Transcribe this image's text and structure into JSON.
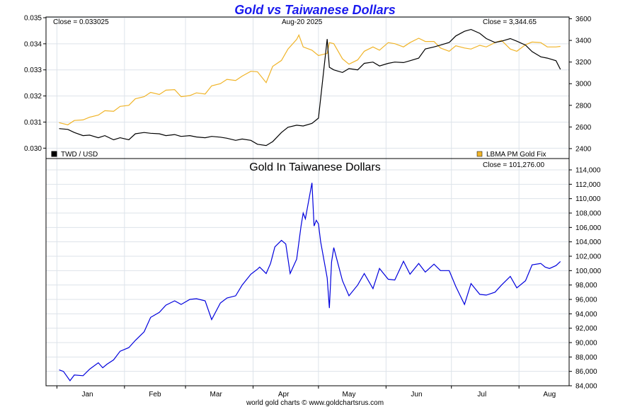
{
  "colors": {
    "twd": "#000000",
    "gold": "#f0b429",
    "gold_in_twd": "#0000dd",
    "grid": "#dde3ea",
    "title": "#1a1aee"
  },
  "chart_data": [
    {
      "type": "line",
      "title": "Gold vs Taiwanese Dollars",
      "close_left": "Close = 0.033025",
      "date_label": "Aug-20  2025",
      "close_right": "Close = 3,344.65",
      "legend_left": "TWD / USD",
      "legend_right": "LBMA PM Gold Fix",
      "legend_placement": "bottom",
      "y_left": {
        "ticks": [
          "0.030",
          "0.031",
          "0.032",
          "0.033",
          "0.034",
          "0.035"
        ],
        "ylim": [
          0.0299,
          0.035
        ]
      },
      "y_right": {
        "ticks": [
          "2400",
          "2600",
          "2800",
          "3000",
          "3200",
          "3400",
          "3600"
        ],
        "ylim": [
          2380,
          3610
        ]
      },
      "x_months": [
        "Jan",
        "Feb",
        "Mar",
        "Apr",
        "May",
        "Jun",
        "Jul",
        "Aug"
      ],
      "grid": true,
      "series": [
        {
          "name": "TWD / USD",
          "axis": "left",
          "points": [
            [
              "2025-01-02",
              0.03075
            ],
            [
              "2025-01-06",
              0.03072
            ],
            [
              "2025-01-09",
              0.0306
            ],
            [
              "2025-01-13",
              0.03048
            ],
            [
              "2025-01-16",
              0.0305
            ],
            [
              "2025-01-20",
              0.0304
            ],
            [
              "2025-01-23",
              0.03048
            ],
            [
              "2025-01-27",
              0.03032
            ],
            [
              "2025-01-30",
              0.0304
            ],
            [
              "2025-02-03",
              0.03032
            ],
            [
              "2025-02-06",
              0.03055
            ],
            [
              "2025-02-10",
              0.0306
            ],
            [
              "2025-02-13",
              0.03057
            ],
            [
              "2025-02-17",
              0.03055
            ],
            [
              "2025-02-20",
              0.03048
            ],
            [
              "2025-02-24",
              0.03052
            ],
            [
              "2025-02-27",
              0.03045
            ],
            [
              "2025-03-03",
              0.03048
            ],
            [
              "2025-03-06",
              0.03043
            ],
            [
              "2025-03-10",
              0.0304
            ],
            [
              "2025-03-13",
              0.03045
            ],
            [
              "2025-03-17",
              0.03042
            ],
            [
              "2025-03-20",
              0.03038
            ],
            [
              "2025-03-24",
              0.0303
            ],
            [
              "2025-03-27",
              0.03035
            ],
            [
              "2025-03-31",
              0.0303
            ],
            [
              "2025-04-03",
              0.03015
            ],
            [
              "2025-04-07",
              0.0301
            ],
            [
              "2025-04-10",
              0.03025
            ],
            [
              "2025-04-14",
              0.0306
            ],
            [
              "2025-04-17",
              0.0308
            ],
            [
              "2025-04-21",
              0.03088
            ],
            [
              "2025-04-24",
              0.03085
            ],
            [
              "2025-04-28",
              0.03095
            ],
            [
              "2025-05-01",
              0.03115
            ],
            [
              "2025-05-05",
              0.03418
            ],
            [
              "2025-05-06",
              0.0331
            ],
            [
              "2025-05-08",
              0.033
            ],
            [
              "2025-05-12",
              0.0329
            ],
            [
              "2025-05-15",
              0.03305
            ],
            [
              "2025-05-19",
              0.033
            ],
            [
              "2025-05-22",
              0.03325
            ],
            [
              "2025-05-26",
              0.0333
            ],
            [
              "2025-05-29",
              0.03315
            ],
            [
              "2025-06-02",
              0.03325
            ],
            [
              "2025-06-05",
              0.0333
            ],
            [
              "2025-06-09",
              0.03328
            ],
            [
              "2025-06-12",
              0.03335
            ],
            [
              "2025-06-16",
              0.03345
            ],
            [
              "2025-06-19",
              0.0338
            ],
            [
              "2025-06-23",
              0.03388
            ],
            [
              "2025-06-26",
              0.03395
            ],
            [
              "2025-06-30",
              0.03405
            ],
            [
              "2025-07-03",
              0.0343
            ],
            [
              "2025-07-07",
              0.03448
            ],
            [
              "2025-07-10",
              0.03455
            ],
            [
              "2025-07-14",
              0.0344
            ],
            [
              "2025-07-17",
              0.0342
            ],
            [
              "2025-07-21",
              0.03405
            ],
            [
              "2025-07-24",
              0.0341
            ],
            [
              "2025-07-28",
              0.0342
            ],
            [
              "2025-07-31",
              0.0341
            ],
            [
              "2025-08-04",
              0.03395
            ],
            [
              "2025-08-07",
              0.0337
            ],
            [
              "2025-08-11",
              0.0335
            ],
            [
              "2025-08-14",
              0.03345
            ],
            [
              "2025-08-18",
              0.03335
            ],
            [
              "2025-08-20",
              0.03302
            ]
          ]
        },
        {
          "name": "LBMA PM Gold Fix",
          "axis": "right",
          "points": [
            [
              "2025-01-02",
              2640
            ],
            [
              "2025-01-06",
              2620
            ],
            [
              "2025-01-09",
              2660
            ],
            [
              "2025-01-13",
              2665
            ],
            [
              "2025-01-16",
              2690
            ],
            [
              "2025-01-20",
              2710
            ],
            [
              "2025-01-23",
              2750
            ],
            [
              "2025-01-27",
              2745
            ],
            [
              "2025-01-30",
              2790
            ],
            [
              "2025-02-03",
              2800
            ],
            [
              "2025-02-06",
              2860
            ],
            [
              "2025-02-10",
              2880
            ],
            [
              "2025-02-13",
              2920
            ],
            [
              "2025-02-17",
              2900
            ],
            [
              "2025-02-20",
              2940
            ],
            [
              "2025-02-24",
              2945
            ],
            [
              "2025-02-27",
              2880
            ],
            [
              "2025-03-03",
              2890
            ],
            [
              "2025-03-06",
              2915
            ],
            [
              "2025-03-10",
              2905
            ],
            [
              "2025-03-13",
              2980
            ],
            [
              "2025-03-17",
              3000
            ],
            [
              "2025-03-20",
              3040
            ],
            [
              "2025-03-24",
              3030
            ],
            [
              "2025-03-27",
              3070
            ],
            [
              "2025-03-31",
              3115
            ],
            [
              "2025-04-03",
              3110
            ],
            [
              "2025-04-07",
              3010
            ],
            [
              "2025-04-10",
              3160
            ],
            [
              "2025-04-14",
              3215
            ],
            [
              "2025-04-17",
              3320
            ],
            [
              "2025-04-21",
              3410
            ],
            [
              "2025-04-22",
              3450
            ],
            [
              "2025-04-24",
              3340
            ],
            [
              "2025-04-28",
              3310
            ],
            [
              "2025-05-01",
              3260
            ],
            [
              "2025-05-05",
              3280
            ],
            [
              "2025-05-06",
              3380
            ],
            [
              "2025-05-08",
              3370
            ],
            [
              "2025-05-12",
              3230
            ],
            [
              "2025-05-15",
              3180
            ],
            [
              "2025-05-19",
              3220
            ],
            [
              "2025-05-22",
              3300
            ],
            [
              "2025-05-26",
              3340
            ],
            [
              "2025-05-29",
              3310
            ],
            [
              "2025-06-02",
              3380
            ],
            [
              "2025-06-05",
              3370
            ],
            [
              "2025-06-09",
              3340
            ],
            [
              "2025-06-12",
              3380
            ],
            [
              "2025-06-16",
              3420
            ],
            [
              "2025-06-19",
              3390
            ],
            [
              "2025-06-23",
              3390
            ],
            [
              "2025-06-26",
              3330
            ],
            [
              "2025-06-30",
              3300
            ],
            [
              "2025-07-03",
              3350
            ],
            [
              "2025-07-07",
              3330
            ],
            [
              "2025-07-10",
              3320
            ],
            [
              "2025-07-14",
              3355
            ],
            [
              "2025-07-17",
              3340
            ],
            [
              "2025-07-21",
              3380
            ],
            [
              "2025-07-24",
              3400
            ],
            [
              "2025-07-28",
              3320
            ],
            [
              "2025-07-31",
              3300
            ],
            [
              "2025-08-04",
              3360
            ],
            [
              "2025-08-07",
              3385
            ],
            [
              "2025-08-11",
              3380
            ],
            [
              "2025-08-14",
              3340
            ],
            [
              "2025-08-18",
              3340
            ],
            [
              "2025-08-20",
              3345
            ]
          ]
        }
      ]
    },
    {
      "type": "line",
      "title": "Gold In Taiwanese Dollars",
      "close_right": "Close = 101,276.00",
      "y_right": {
        "ticks": [
          "84,000",
          "86,000",
          "88,000",
          "90,000",
          "92,000",
          "94,000",
          "96,000",
          "98,000",
          "100,000",
          "102,000",
          "104,000",
          "106,000",
          "108,000",
          "110,000",
          "112,000",
          "114,000"
        ],
        "ylim": [
          84000,
          114000
        ]
      },
      "x_months": [
        "Jan",
        "Feb",
        "Mar",
        "Apr",
        "May",
        "Jun",
        "Jul",
        "Aug"
      ],
      "grid": true,
      "series": [
        {
          "name": "Gold In Taiwanese Dollars",
          "axis": "right",
          "points": [
            [
              "2025-01-02",
              86200
            ],
            [
              "2025-01-04",
              86000
            ],
            [
              "2025-01-07",
              84700
            ],
            [
              "2025-01-09",
              85500
            ],
            [
              "2025-01-13",
              85400
            ],
            [
              "2025-01-16",
              86300
            ],
            [
              "2025-01-20",
              87200
            ],
            [
              "2025-01-22",
              86500
            ],
            [
              "2025-01-24",
              87000
            ],
            [
              "2025-01-27",
              87600
            ],
            [
              "2025-01-30",
              88800
            ],
            [
              "2025-02-03",
              89300
            ],
            [
              "2025-02-06",
              90300
            ],
            [
              "2025-02-10",
              91500
            ],
            [
              "2025-02-13",
              93500
            ],
            [
              "2025-02-17",
              94200
            ],
            [
              "2025-02-20",
              95200
            ],
            [
              "2025-02-24",
              95800
            ],
            [
              "2025-02-27",
              95300
            ],
            [
              "2025-03-03",
              96000
            ],
            [
              "2025-03-06",
              96100
            ],
            [
              "2025-03-10",
              95800
            ],
            [
              "2025-03-13",
              93200
            ],
            [
              "2025-03-17",
              95500
            ],
            [
              "2025-03-20",
              96200
            ],
            [
              "2025-03-24",
              96500
            ],
            [
              "2025-03-27",
              98000
            ],
            [
              "2025-03-31",
              99500
            ],
            [
              "2025-04-03",
              100200
            ],
            [
              "2025-04-04",
              100500
            ],
            [
              "2025-04-07",
              99600
            ],
            [
              "2025-04-09",
              101000
            ],
            [
              "2025-04-11",
              103300
            ],
            [
              "2025-04-14",
              104200
            ],
            [
              "2025-04-16",
              103700
            ],
            [
              "2025-04-18",
              99600
            ],
            [
              "2025-04-21",
              101600
            ],
            [
              "2025-04-23",
              106200
            ],
            [
              "2025-04-24",
              108000
            ],
            [
              "2025-04-25",
              107200
            ],
            [
              "2025-04-28",
              112200
            ],
            [
              "2025-04-29",
              106200
            ],
            [
              "2025-04-30",
              107000
            ],
            [
              "2025-05-01",
              106500
            ],
            [
              "2025-05-02",
              104000
            ],
            [
              "2025-05-05",
              99000
            ],
            [
              "2025-05-06",
              94800
            ],
            [
              "2025-05-07",
              101200
            ],
            [
              "2025-05-08",
              103200
            ],
            [
              "2025-05-12",
              98600
            ],
            [
              "2025-05-15",
              96500
            ],
            [
              "2025-05-19",
              98000
            ],
            [
              "2025-05-22",
              99600
            ],
            [
              "2025-05-26",
              97500
            ],
            [
              "2025-05-29",
              100300
            ],
            [
              "2025-06-02",
              98800
            ],
            [
              "2025-06-05",
              98700
            ],
            [
              "2025-06-09",
              101300
            ],
            [
              "2025-06-12",
              99500
            ],
            [
              "2025-06-16",
              101000
            ],
            [
              "2025-06-19",
              99800
            ],
            [
              "2025-06-23",
              100900
            ],
            [
              "2025-06-26",
              100000
            ],
            [
              "2025-06-30",
              100000
            ],
            [
              "2025-07-03",
              97800
            ],
            [
              "2025-07-07",
              95300
            ],
            [
              "2025-07-10",
              98200
            ],
            [
              "2025-07-14",
              96700
            ],
            [
              "2025-07-17",
              96600
            ],
            [
              "2025-07-21",
              97000
            ],
            [
              "2025-07-24",
              98000
            ],
            [
              "2025-07-28",
              99200
            ],
            [
              "2025-07-31",
              97600
            ],
            [
              "2025-08-04",
              98600
            ],
            [
              "2025-08-07",
              100800
            ],
            [
              "2025-08-11",
              101000
            ],
            [
              "2025-08-13",
              100500
            ],
            [
              "2025-08-15",
              100300
            ],
            [
              "2025-08-18",
              100700
            ],
            [
              "2025-08-20",
              101276
            ]
          ]
        }
      ]
    }
  ],
  "footer": "world gold charts © www.goldchartsrus.com"
}
